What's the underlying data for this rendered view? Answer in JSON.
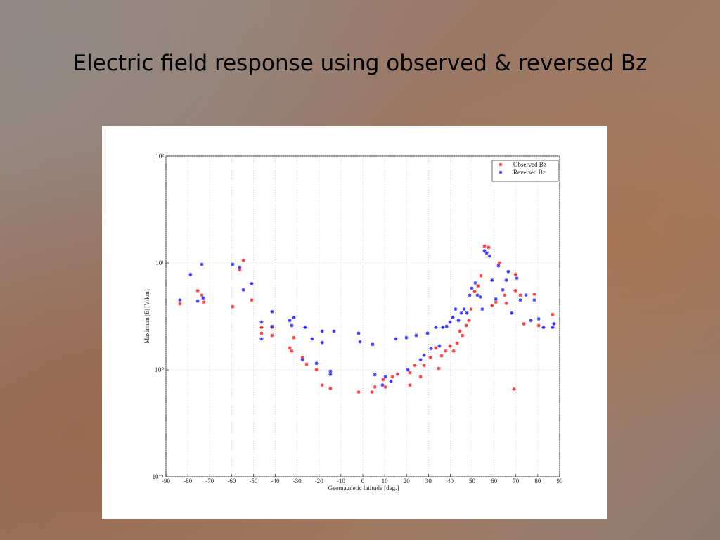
{
  "chart_data": {
    "type": "scatter",
    "title": "Electric field response using observed & reversed Bz",
    "xlabel": "Geomagnetic latitude [deg.]",
    "ylabel": "Maximum |E| [V/km]",
    "xlim": [
      -90,
      90
    ],
    "xticks": [
      -90,
      -80,
      -70,
      -60,
      -50,
      -40,
      -30,
      -20,
      -10,
      0,
      10,
      20,
      30,
      40,
      50,
      60,
      70,
      80,
      90
    ],
    "ylim": [
      0.1,
      100
    ],
    "log_y": true,
    "grid": true,
    "legend": "upper right",
    "yticks": [
      {
        "value": 0.1,
        "label": "10⁻¹"
      },
      {
        "value": 1,
        "label": "10⁰"
      },
      {
        "value": 10,
        "label": "10¹"
      },
      {
        "value": 100,
        "label": "10²"
      }
    ],
    "series": [
      {
        "name": "Observed Bz",
        "color": "#ff3030",
        "x": [
          -83.6,
          -75.5,
          -73.6,
          -72.6,
          -59.5,
          -56.3,
          -54.6,
          -50.8,
          -46.3,
          -46.3,
          -41.5,
          -41.5,
          -33.4,
          -32.5,
          -31.5,
          -27.6,
          -25.7,
          -21.2,
          -18.6,
          -14.8,
          -1.9,
          4.2,
          5.5,
          9.3,
          10.3,
          13.5,
          15.8,
          21.5,
          21.5,
          23.8,
          26.4,
          28,
          30.9,
          33.4,
          34.7,
          36,
          37.9,
          39.9,
          41.5,
          43.1,
          44.4,
          45.6,
          47.3,
          48.5,
          49.5,
          51.1,
          52.7,
          54,
          55.6,
          57.5,
          59.1,
          60.8,
          62.4,
          64.9,
          65.6,
          69.8,
          69.8,
          69.1,
          72,
          73.6,
          78.4,
          80.4,
          86.8
        ],
        "values": [
          4.15,
          5.5,
          5.0,
          4.3,
          3.9,
          8.6,
          10.6,
          4.5,
          2.5,
          2.2,
          2.5,
          2.1,
          1.6,
          1.5,
          2.0,
          1.3,
          1.13,
          1.0,
          0.72,
          0.67,
          0.62,
          0.62,
          0.69,
          0.81,
          0.69,
          0.86,
          0.91,
          0.72,
          0.94,
          1.1,
          0.86,
          1.1,
          1.3,
          1.6,
          1.03,
          1.35,
          1.5,
          1.67,
          1.5,
          1.78,
          2.3,
          2.1,
          2.6,
          2.9,
          3.7,
          5.4,
          6.1,
          7.6,
          14.4,
          14,
          4.0,
          4.3,
          10,
          5.0,
          4.2,
          5.5,
          7.8,
          0.66,
          5.0,
          2.7,
          5.1,
          2.6,
          3.3
        ]
      },
      {
        "name": "Reversed Bz",
        "color": "#3030ff",
        "x": [
          -83.6,
          -78.8,
          -75.5,
          -73.6,
          -73,
          -59.5,
          -56.3,
          -54.6,
          -50.8,
          -46.3,
          -46.3,
          -41.5,
          -41.5,
          -33.4,
          -32.5,
          -31.5,
          -27.6,
          -26.4,
          -23.1,
          -21.2,
          -18.6,
          -18.6,
          -14.8,
          -14.8,
          -13.2,
          -1.9,
          -1.3,
          4.5,
          5.5,
          9,
          10.3,
          12.9,
          15.1,
          19.9,
          20.6,
          24.4,
          26.4,
          28,
          29.6,
          31.2,
          33.4,
          35,
          36.6,
          38.3,
          39.9,
          41.1,
          42.4,
          43.7,
          45,
          46.3,
          47.6,
          48.9,
          49.8,
          51.4,
          52.4,
          53.7,
          54.6,
          55.6,
          56.6,
          57.9,
          59.1,
          60.8,
          62,
          64,
          65.6,
          66.5,
          68.1,
          70.4,
          72,
          74.6,
          76.8,
          78.4,
          80.4,
          82.6,
          86.8,
          87.4
        ],
        "values": [
          4.5,
          7.8,
          4.4,
          9.7,
          4.7,
          9.7,
          9.1,
          5.6,
          6.4,
          2.8,
          1.95,
          3.5,
          2.55,
          2.9,
          2.6,
          3.1,
          1.24,
          2.5,
          1.95,
          1.15,
          2.3,
          1.8,
          0.97,
          0.91,
          2.3,
          2.2,
          1.83,
          1.73,
          0.9,
          0.72,
          0.86,
          0.78,
          1.95,
          2.0,
          1.0,
          2.1,
          1.24,
          1.37,
          2.2,
          1.58,
          2.5,
          1.67,
          2.5,
          2.55,
          2.8,
          3.1,
          3.7,
          2.9,
          3.4,
          3.7,
          3.4,
          5.0,
          5.8,
          6.5,
          5.0,
          4.8,
          3.7,
          13,
          12.4,
          11.6,
          6.9,
          4.6,
          9.4,
          5.6,
          6.9,
          8.3,
          3.4,
          7.2,
          4.5,
          5.0,
          2.9,
          4.5,
          3.0,
          2.5,
          2.5,
          2.7
        ]
      }
    ]
  }
}
